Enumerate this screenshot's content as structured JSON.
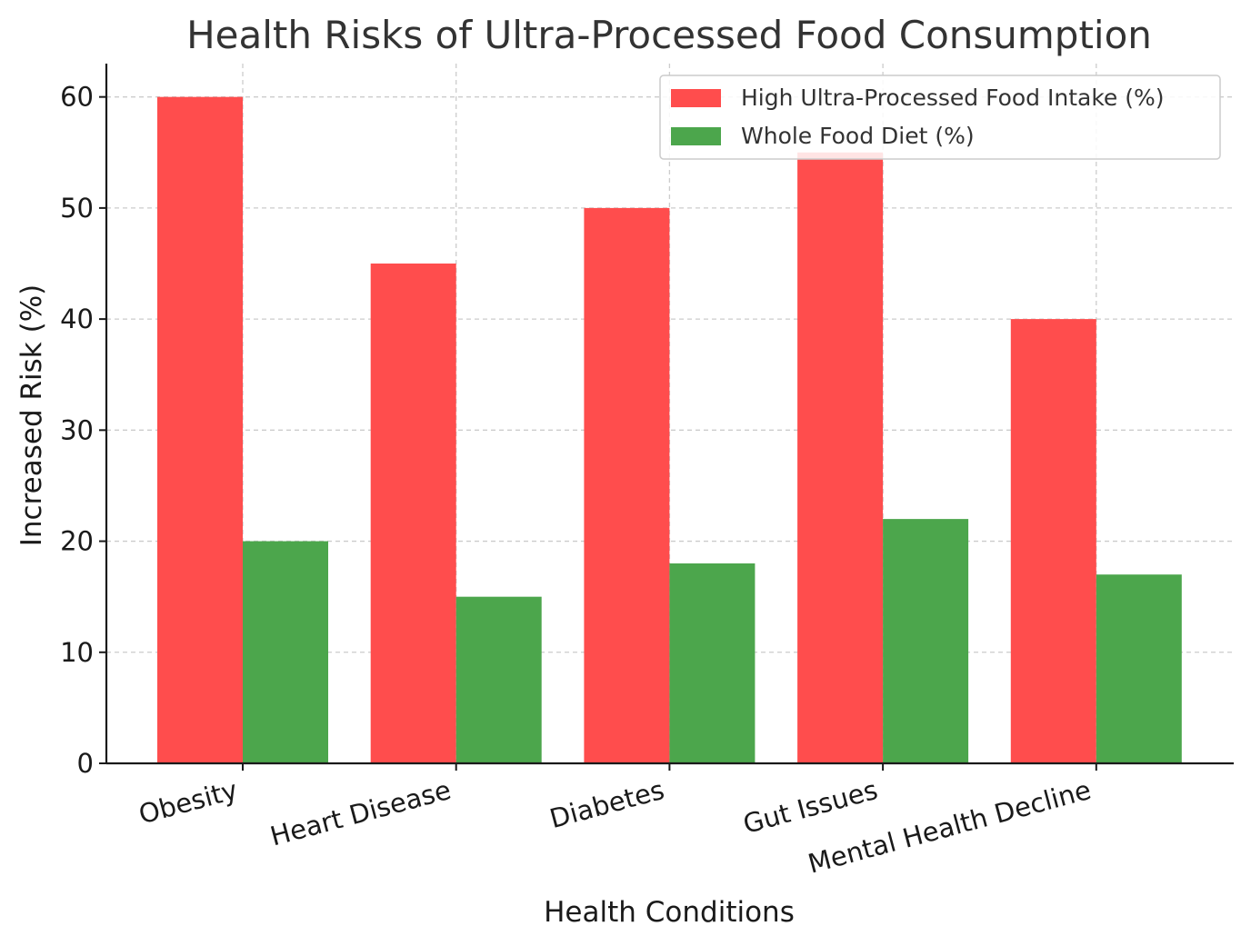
{
  "chart_data": {
    "type": "bar",
    "title": "Health Risks of Ultra-Processed Food Consumption",
    "xlabel": "Health Conditions",
    "ylabel": "Increased Risk (%)",
    "categories": [
      "Obesity",
      "Heart Disease",
      "Diabetes",
      "Gut Issues",
      "Mental Health Decline"
    ],
    "series": [
      {
        "name": "High Ultra-Processed Food Intake (%)",
        "color": "#ff4d4d",
        "values": [
          60,
          45,
          50,
          55,
          40
        ]
      },
      {
        "name": "Whole Food Diet (%)",
        "color": "#4ca64c",
        "values": [
          20,
          15,
          18,
          22,
          17
        ]
      }
    ],
    "ylim": [
      0,
      63
    ],
    "yticks": [
      0,
      10,
      20,
      30,
      40,
      50,
      60
    ],
    "grid": true,
    "legend": "top-right"
  }
}
